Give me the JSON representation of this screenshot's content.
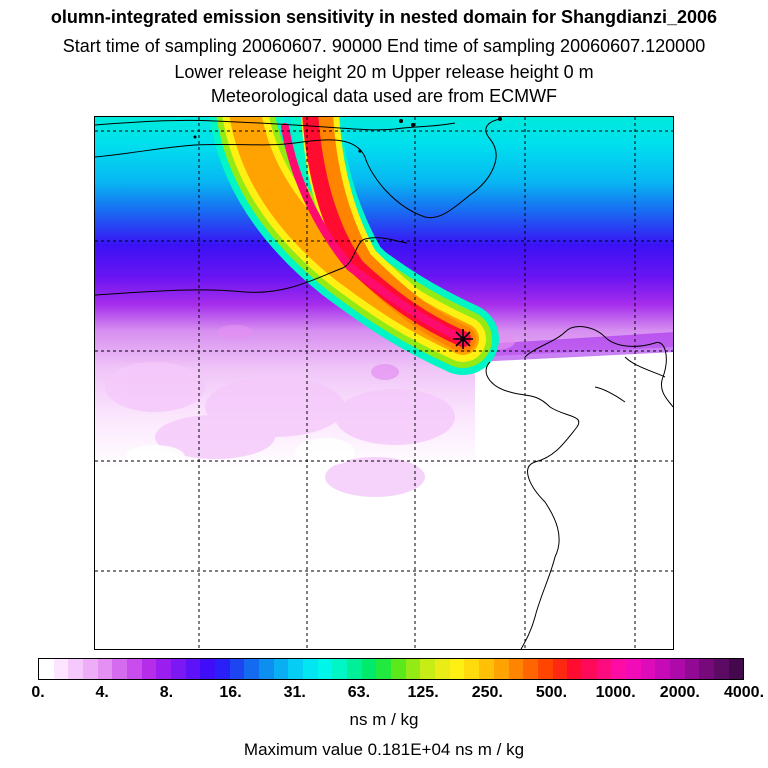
{
  "titles": {
    "line1": "olumn-integrated emission sensitivity in nested domain for Shangdianzi_2006",
    "line2": "Start time of sampling 20060607. 90000     End time of sampling 20060607.120000",
    "line3": "Lower release height   20 m          Upper release height    0 m",
    "line4": "Meteorological data used are from ECMWF"
  },
  "colorbar": {
    "tick_labels": [
      "0.",
      "4.",
      "8.",
      "16.",
      "31.",
      "63.",
      "125.",
      "250.",
      "500.",
      "1000.",
      "2000.",
      "4000."
    ],
    "colors": [
      "#ffffff",
      "#fde4ff",
      "#f5c9fb",
      "#eeadf7",
      "#e390f2",
      "#d56cef",
      "#c94cec",
      "#b52ce9",
      "#9a1ef0",
      "#7c18f4",
      "#5d12f7",
      "#3f0df8",
      "#2a1ff6",
      "#1d45f2",
      "#156bf0",
      "#0d8ff0",
      "#09aff2",
      "#05cdf3",
      "#02e6f2",
      "#00f6e8",
      "#00f6c4",
      "#00f09a",
      "#00eb6c",
      "#21e93d",
      "#5be91c",
      "#93ea14",
      "#c7ec16",
      "#eaec18",
      "#fff014",
      "#ffda0c",
      "#ffc006",
      "#ffa302",
      "#ff8400",
      "#ff6500",
      "#ff4500",
      "#ff2810",
      "#ff0c30",
      "#ff0a5a",
      "#ff0b80",
      "#ff0ca4",
      "#f20cb8",
      "#dd0bba",
      "#c70ab8",
      "#ae0aa9",
      "#920a94",
      "#760a7b",
      "#5c0a63",
      "#43094c"
    ],
    "units": "ns m / kg",
    "max_value": "Maximum value  0.181E+04 ns m / kg"
  }
}
